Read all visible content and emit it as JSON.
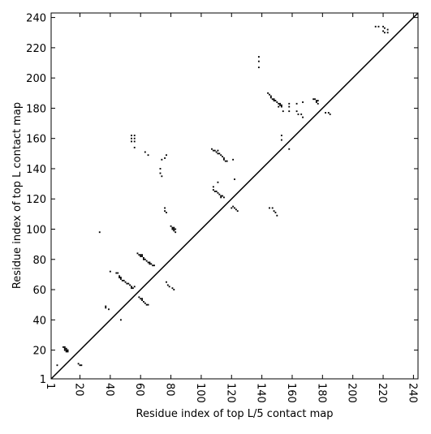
{
  "chart_data": {
    "type": "contact_map",
    "xlabel": "Residue index of top L/5 contact map",
    "ylabel": "Residue index of top L contact map",
    "xlim": [
      1,
      243
    ],
    "ylim": [
      1,
      243
    ],
    "xticks": [
      1,
      20,
      40,
      60,
      80,
      100,
      120,
      140,
      160,
      180,
      200,
      220,
      240
    ],
    "yticks": [
      1,
      20,
      40,
      60,
      80,
      100,
      120,
      140,
      160,
      180,
      200,
      220,
      240
    ],
    "color": "#000000",
    "diagonal": true,
    "points": {
      "x": [
        9,
        10,
        10,
        11,
        10,
        11,
        12,
        11,
        12,
        19,
        20,
        21,
        5,
        33,
        37,
        37,
        39,
        40,
        44,
        45,
        46,
        46,
        47,
        47,
        48,
        49,
        50,
        51,
        52,
        53,
        54,
        55,
        56,
        54,
        47,
        54,
        56,
        54,
        56,
        54,
        56,
        56,
        58,
        59,
        60,
        61,
        60,
        61,
        62,
        62,
        63,
        64,
        65,
        66,
        66,
        67,
        68,
        69,
        59,
        60,
        61,
        61,
        62,
        63,
        64,
        65,
        63,
        65,
        73,
        73,
        74,
        74,
        76,
        77,
        76,
        76,
        77,
        77,
        78,
        79,
        81,
        82,
        80,
        81,
        82,
        81,
        82,
        83,
        82,
        83,
        107,
        108,
        109,
        110,
        111,
        111,
        112,
        113,
        114,
        115,
        115,
        116,
        117,
        108,
        108,
        109,
        110,
        111,
        112,
        113,
        114,
        113,
        115,
        111,
        120,
        121,
        122,
        123,
        124,
        121,
        122,
        138,
        138,
        138,
        144,
        145,
        146,
        146,
        147,
        148,
        148,
        149,
        150,
        151,
        152,
        152,
        153,
        151,
        153,
        154,
        145,
        147,
        148,
        149,
        150,
        153,
        153,
        158,
        158,
        158,
        163,
        163,
        164,
        166,
        167,
        167,
        158,
        174,
        175,
        176,
        177,
        176,
        177,
        182,
        184,
        185,
        215,
        217,
        220,
        221,
        220,
        223,
        223,
        221
      ],
      "y": [
        22,
        22,
        21,
        21,
        20,
        20,
        20,
        19,
        19,
        11,
        10,
        10,
        10,
        98,
        49,
        48,
        47,
        72,
        71,
        71,
        69,
        68,
        68,
        67,
        66,
        66,
        65,
        64,
        64,
        63,
        62,
        61,
        62,
        61,
        40,
        162,
        162,
        160,
        160,
        158,
        158,
        154,
        84,
        83,
        83,
        83,
        82,
        82,
        81,
        80,
        80,
        79,
        78,
        78,
        77,
        77,
        76,
        76,
        55,
        54,
        54,
        53,
        52,
        51,
        50,
        50,
        151,
        149,
        140,
        137,
        135,
        146,
        147,
        149,
        114,
        112,
        111,
        65,
        63,
        62,
        61,
        60,
        102,
        101,
        101,
        100,
        100,
        100,
        99,
        98,
        153,
        152,
        152,
        151,
        152,
        150,
        150,
        149,
        148,
        147,
        146,
        145,
        145,
        128,
        126,
        125,
        125,
        124,
        123,
        122,
        122,
        121,
        121,
        131,
        114,
        115,
        114,
        113,
        112,
        146,
        133,
        214,
        211,
        207,
        190,
        189,
        188,
        187,
        186,
        186,
        185,
        185,
        184,
        183,
        183,
        182,
        182,
        181,
        181,
        178,
        114,
        114,
        112,
        111,
        109,
        162,
        159,
        183,
        181,
        178,
        183,
        178,
        176,
        176,
        174,
        184,
        153,
        186,
        186,
        185,
        185,
        184,
        183,
        177,
        177,
        176,
        234,
        234,
        234,
        233,
        231,
        232,
        230,
        230
      ]
    }
  }
}
